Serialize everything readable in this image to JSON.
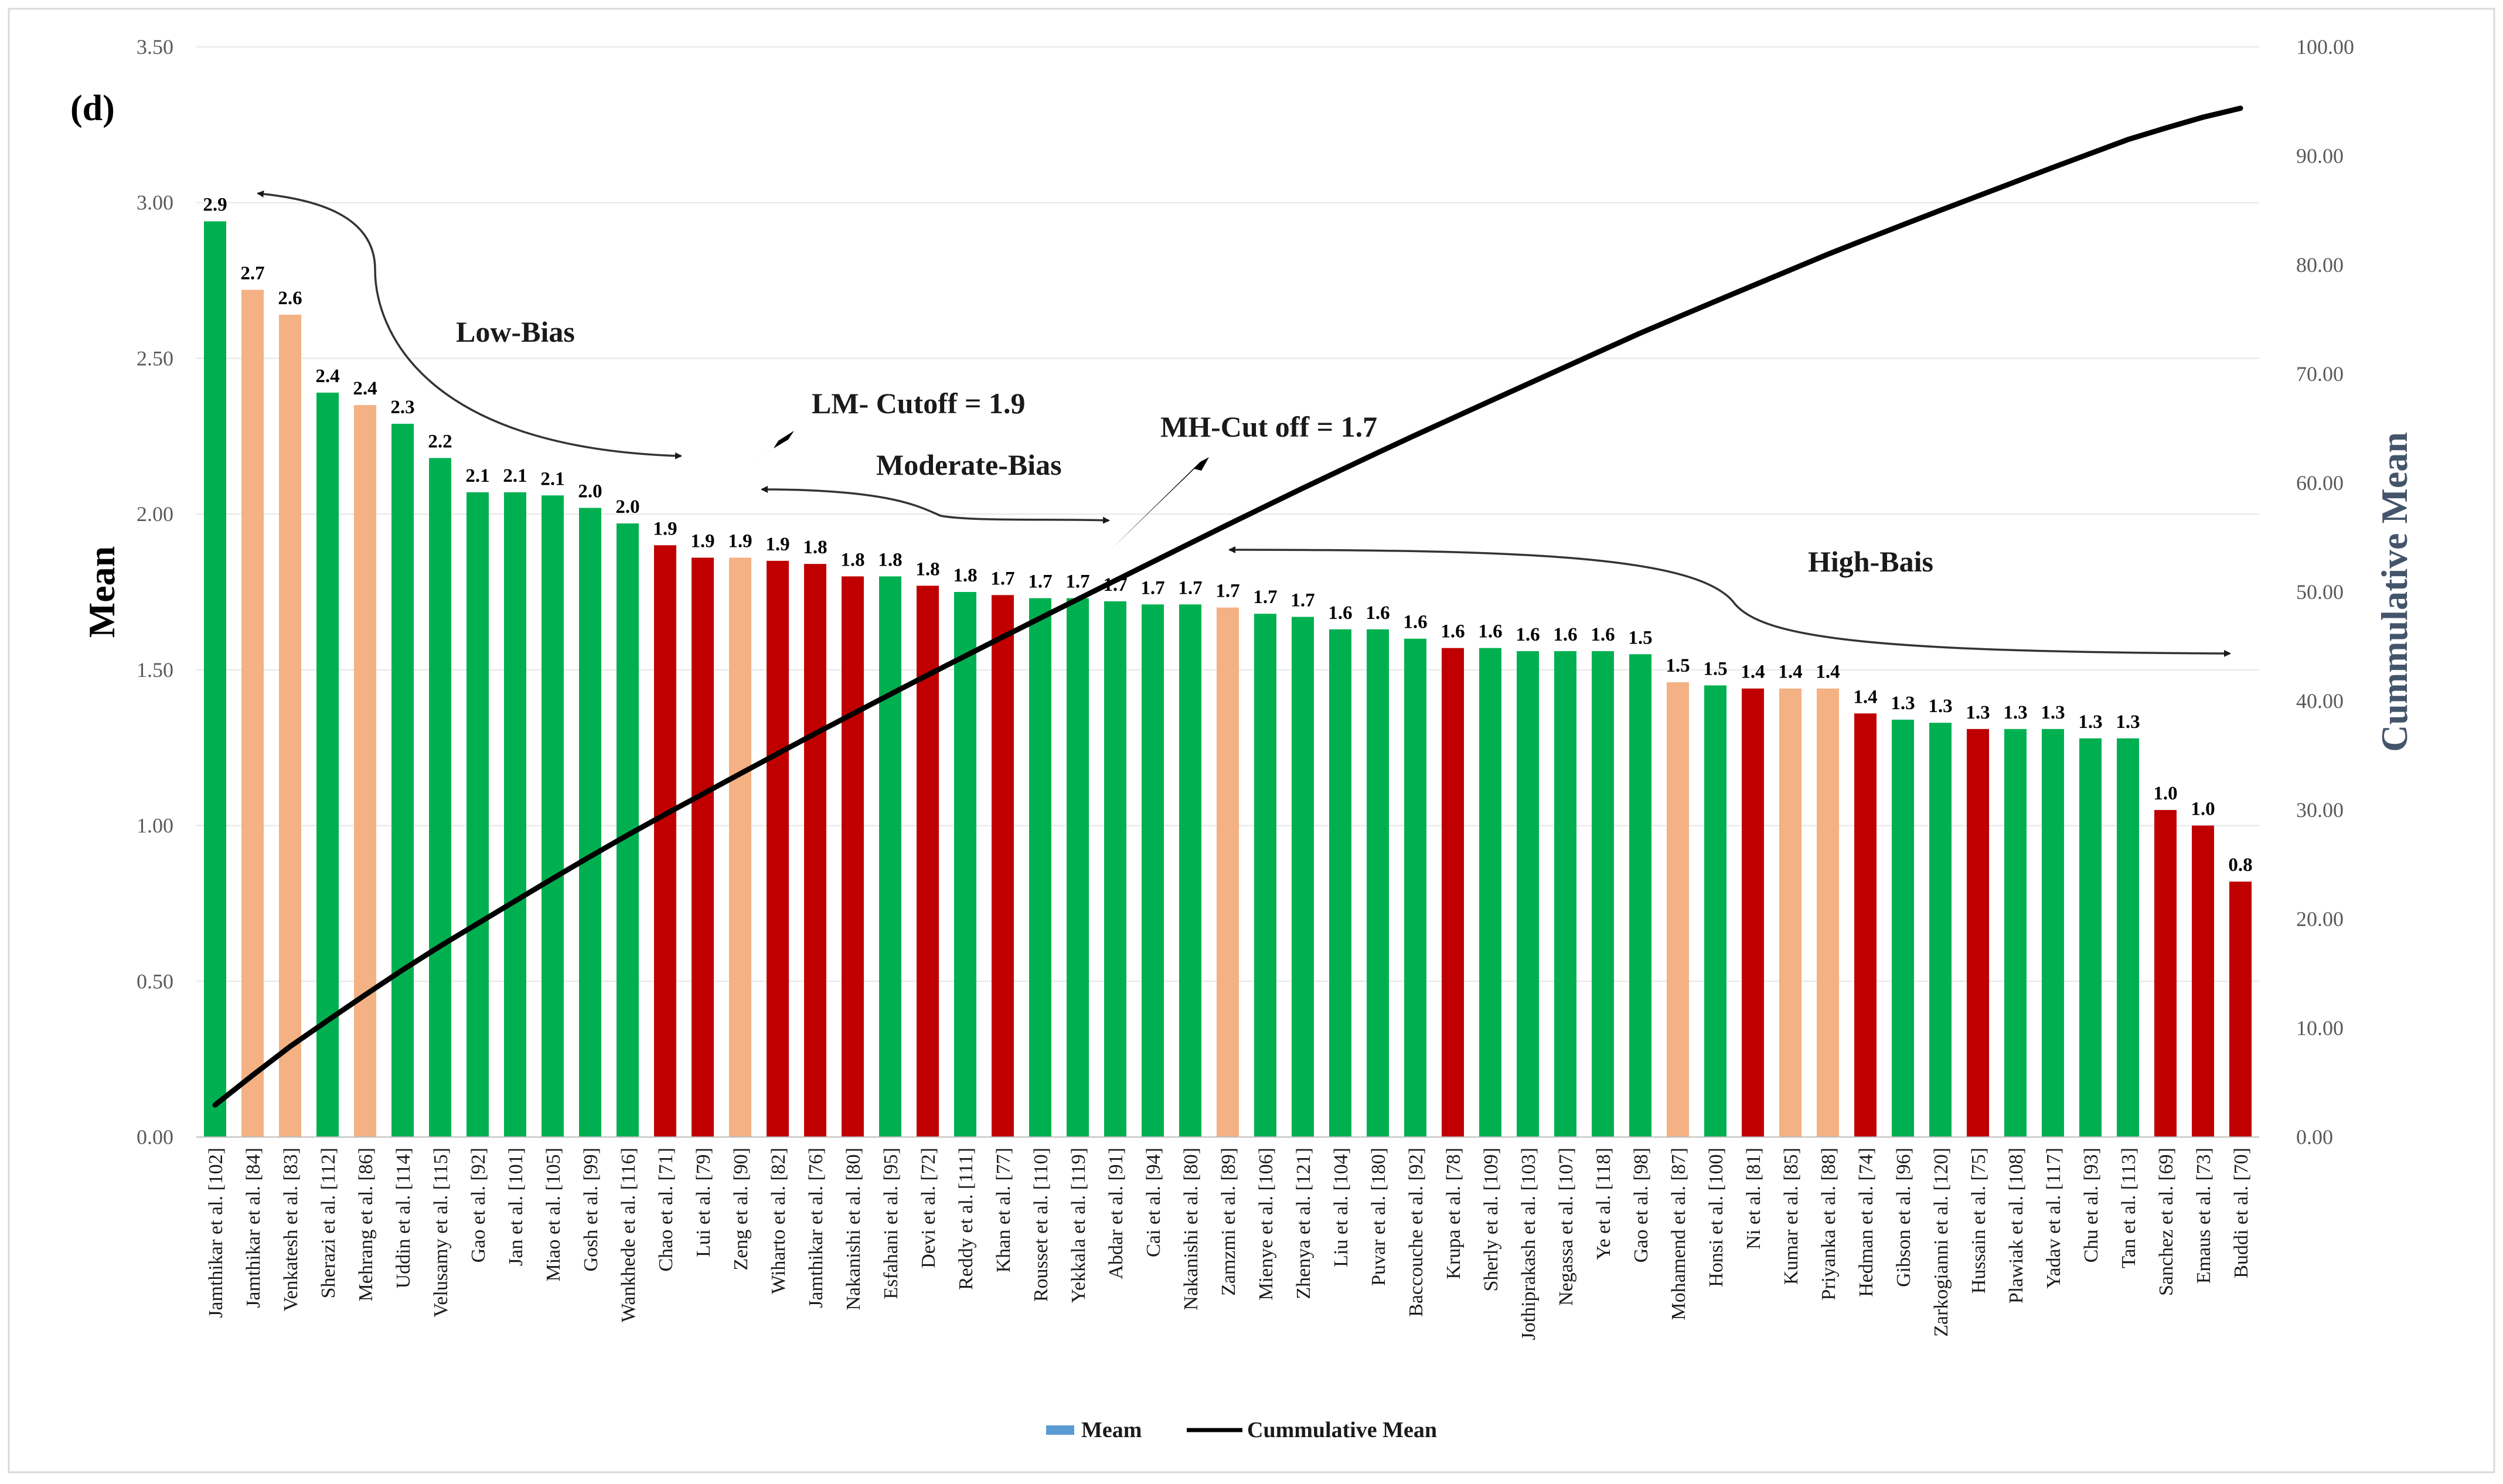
{
  "colors": {
    "low": "#00b050",
    "moderate": "#f4b183",
    "high": "#c00000",
    "line": "#000000",
    "grid": "#e6e6e6",
    "legend_meam": "#5b9bd5",
    "right_title": "#44546a"
  },
  "chart_data": {
    "type": "bar",
    "panel_label": "(d)",
    "ylabel": "Mean",
    "y2label": "Cummulative Mean",
    "ylim": [
      0,
      3.5
    ],
    "y2lim": [
      0,
      100
    ],
    "yticks": [
      "0.00",
      "0.50",
      "1.00",
      "1.50",
      "2.00",
      "2.50",
      "3.00",
      "3.50"
    ],
    "y2ticks": [
      "0.00",
      "10.00",
      "20.00",
      "30.00",
      "40.00",
      "50.00",
      "60.00",
      "70.00",
      "80.00",
      "90.00",
      "100.00"
    ],
    "categories": [
      "Jamthikar et al. [102]",
      "Jamthikar et al. [84]",
      "Venkatesh et al. [83]",
      "Sherazi et al. [112]",
      "Mehrang et al. [86]",
      "Uddin et al. [114]",
      "Velusamy et al. [115]",
      "Gao et al. [92]",
      "Jan et al. [101]",
      "Miao et al. [105]",
      "Gosh et al. [99]",
      "Wankhede et al. [116]",
      "Chao et al. [71]",
      "Lui et al. [79]",
      "Zeng et al. [90]",
      "Wiharto et al. [82]",
      "Jamthikar et al. [76]",
      "Nakanishi et al. [80]",
      "Esfahani et al. [95]",
      "Devi et al. [72]",
      "Reddy et al. [111]",
      "Khan et al. [77]",
      "Rousset et al. [110]",
      "Yekkala et al. [119]",
      "Abdar et al. [91]",
      "Cai et al. [94]",
      "Nakanishi et al. [80]",
      "Zamzmi et al. [89]",
      "Mienye et al. [106]",
      "Zhenya et al. [121]",
      "Liu et al. [104]",
      "Puvar et al. [180]",
      "Baccouche et al. [92]",
      "Krupa et al. [78]",
      "Sherly et al. [109]",
      "Jothiprakash et al. [103]",
      "Negassa et al. [107]",
      "Ye et al. [118]",
      "Gao et al. [98]",
      "Mohamend et al. [87]",
      "Honsi et al. [100]",
      "Ni et al. [81]",
      "Kumar et al. [85]",
      "Priyanka et al. [88]",
      "Hedman et al. [74]",
      "Gibson et al. [96]",
      "Zarkogianni et al. [120]",
      "Hussain et al. [75]",
      "Plawiak et al. [108]",
      "Yadav et al. [117]",
      "Chu et al. [93]",
      "Tan et al. [113]",
      "Sanchez et al. [69]",
      "Emaus et al. [73]",
      "Buddi et al. [70]"
    ],
    "values": [
      2.94,
      2.72,
      2.64,
      2.39,
      2.35,
      2.29,
      2.18,
      2.07,
      2.07,
      2.06,
      2.02,
      1.97,
      1.9,
      1.86,
      1.86,
      1.85,
      1.84,
      1.8,
      1.8,
      1.77,
      1.75,
      1.74,
      1.73,
      1.73,
      1.72,
      1.71,
      1.71,
      1.7,
      1.68,
      1.67,
      1.63,
      1.63,
      1.6,
      1.57,
      1.57,
      1.56,
      1.56,
      1.56,
      1.55,
      1.46,
      1.45,
      1.44,
      1.44,
      1.44,
      1.36,
      1.34,
      1.33,
      1.31,
      1.31,
      1.31,
      1.28,
      1.28,
      1.05,
      1.0,
      0.82
    ],
    "value_labels": [
      "2.9",
      "2.7",
      "2.6",
      "2.4",
      "2.4",
      "2.3",
      "2.2",
      "2.1",
      "2.1",
      "2.1",
      "2.0",
      "2.0",
      "1.9",
      "1.9",
      "1.9",
      "1.9",
      "1.8",
      "1.8",
      "1.8",
      "1.8",
      "1.8",
      "1.7",
      "1.7",
      "1.7",
      "1.7",
      "1.7",
      "1.7",
      "1.7",
      "1.7",
      "1.7",
      "1.6",
      "1.6",
      "1.6",
      "1.6",
      "1.6",
      "1.6",
      "1.6",
      "1.6",
      "1.5",
      "1.5",
      "1.5",
      "1.4",
      "1.4",
      "1.4",
      "1.4",
      "1.3",
      "1.3",
      "1.3",
      "1.3",
      "1.3",
      "1.3",
      "1.3",
      "1.0",
      "1.0",
      "0.8"
    ],
    "bias_class": [
      "low",
      "moderate",
      "moderate",
      "low",
      "moderate",
      "low",
      "low",
      "low",
      "low",
      "low",
      "low",
      "low",
      "high",
      "high",
      "moderate",
      "high",
      "high",
      "high",
      "low",
      "high",
      "low",
      "high",
      "low",
      "low",
      "low",
      "low",
      "low",
      "moderate",
      "low",
      "low",
      "low",
      "low",
      "low",
      "high",
      "low",
      "low",
      "low",
      "low",
      "low",
      "moderate",
      "low",
      "high",
      "moderate",
      "moderate",
      "high",
      "low",
      "low",
      "high",
      "low",
      "low",
      "low",
      "low",
      "high",
      "high",
      "high"
    ],
    "cumulative": [
      2.94,
      5.66,
      8.3,
      10.69,
      13.04,
      15.33,
      17.51,
      19.58,
      21.65,
      23.71,
      25.73,
      27.7,
      29.6,
      31.46,
      33.32,
      35.17,
      37.01,
      38.81,
      40.61,
      42.38,
      44.13,
      45.87,
      47.6,
      49.33,
      51.05,
      52.76,
      54.47,
      56.17,
      57.85,
      59.52,
      61.15,
      62.78,
      64.38,
      65.95,
      67.52,
      69.08,
      70.64,
      72.2,
      73.75,
      75.21,
      76.66,
      78.1,
      79.54,
      80.98,
      82.34,
      83.68,
      85.01,
      86.32,
      87.63,
      88.94,
      90.22,
      91.5,
      92.55,
      93.55,
      94.37
    ],
    "series": [
      {
        "name": "Meam",
        "type": "bar"
      },
      {
        "name": "Cummulative Mean",
        "type": "line"
      }
    ],
    "annotations": {
      "low_bias": "Low-Bias",
      "lm_cutoff": "LM- Cutoff = 1.9",
      "moderate_bias": "Moderate-Bias",
      "mh_cutoff": "MH-Cut off = 1.7",
      "high_bias": "High-Bais"
    },
    "legend_position": "bottom"
  }
}
